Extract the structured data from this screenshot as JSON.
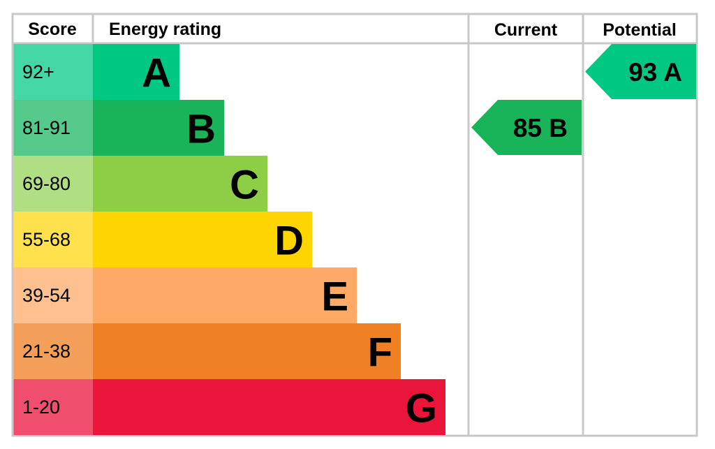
{
  "headers": [
    "Score",
    "Energy rating",
    "Current",
    "Potential"
  ],
  "bands": [
    {
      "score": "92+",
      "letter": "A",
      "color": "#00c781",
      "score_color": "#45d6a5"
    },
    {
      "score": "81-91",
      "letter": "B",
      "color": "#19b459",
      "score_color": "#55c98a"
    },
    {
      "score": "69-80",
      "letter": "C",
      "color": "#8dce46",
      "score_color": "#b0de83"
    },
    {
      "score": "55-68",
      "letter": "D",
      "color": "#ffd500",
      "score_color": "#ffe14d"
    },
    {
      "score": "39-54",
      "letter": "E",
      "color": "#fcaa65",
      "score_color": "#fdc08e"
    },
    {
      "score": "21-38",
      "letter": "F",
      "color": "#ef8023",
      "score_color": "#f39f5a"
    },
    {
      "score": "1-20",
      "letter": "G",
      "color": "#e9153b",
      "score_color": "#ef4f6d"
    }
  ],
  "current": {
    "label": "85 B"
  },
  "potential": {
    "label": "93 A"
  }
}
